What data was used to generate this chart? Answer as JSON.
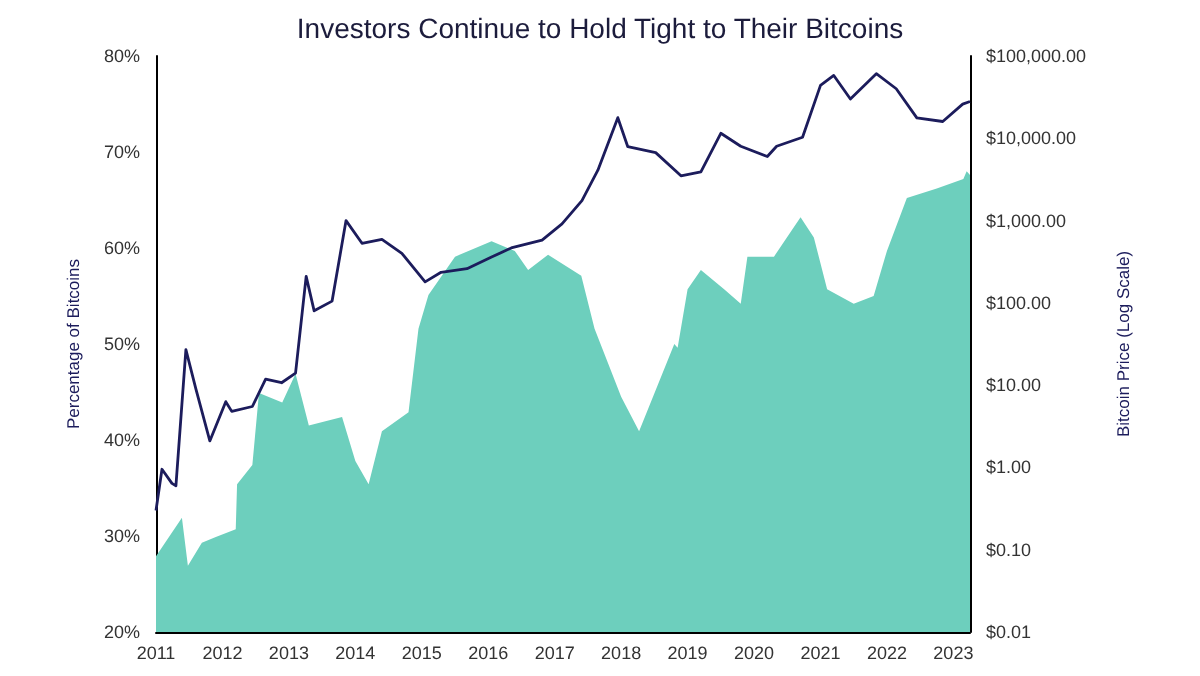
{
  "chart_data": {
    "type": "area",
    "title": "Investors Continue to Hold Tight to Their Bitcoins",
    "ylabel": "Percentage of Bitcoins",
    "y2label": "Bitcoin Price (Log Scale)",
    "xlim": [
      2011,
      2023.25
    ],
    "xticks": [
      2011,
      2012,
      2013,
      2014,
      2015,
      2016,
      2017,
      2018,
      2019,
      2020,
      2021,
      2022,
      2023
    ],
    "ylim": [
      20,
      80
    ],
    "yticks": [
      {
        "value": 20,
        "label": "20%"
      },
      {
        "value": 30,
        "label": "30%"
      },
      {
        "value": 40,
        "label": "40%"
      },
      {
        "value": 50,
        "label": "50%"
      },
      {
        "value": 60,
        "label": "60%"
      },
      {
        "value": 70,
        "label": "70%"
      },
      {
        "value": 80,
        "label": "80%"
      }
    ],
    "y2lim": [
      0.01,
      100000
    ],
    "y2ticks": [
      {
        "value": 0.01,
        "label": "$0.01"
      },
      {
        "value": 0.1,
        "label": "$0.10"
      },
      {
        "value": 1,
        "label": "$1.00"
      },
      {
        "value": 10,
        "label": "$10.00"
      },
      {
        "value": 100,
        "label": "$100.00"
      },
      {
        "value": 1000,
        "label": "$1,000.00"
      },
      {
        "value": 10000,
        "label": "$10,000.00"
      },
      {
        "value": 100000,
        "label": "$100,000.00"
      }
    ],
    "log": "y2",
    "grid": false,
    "series": [
      {
        "color": "#6dcfbd",
        "x": [
          2011.0,
          2011.39,
          2011.48,
          2011.69,
          2011.9,
          2012.2,
          2012.22,
          2012.45,
          2012.55,
          2012.9,
          2013.1,
          2013.3,
          2013.8,
          2014.0,
          2014.2,
          2014.4,
          2014.8,
          2014.95,
          2015.1,
          2015.5,
          2016.05,
          2016.4,
          2016.6,
          2016.9,
          2017.4,
          2017.6,
          2018.0,
          2018.27,
          2018.8,
          2018.85,
          2019.0,
          2019.2,
          2019.55,
          2019.8,
          2019.9,
          2020.3,
          2020.7,
          2020.9,
          2021.1,
          2021.5,
          2021.8,
          2022.0,
          2022.3,
          2022.75,
          2023.15,
          2023.2,
          2023.25
        ],
        "values": [
          27.9,
          31.9,
          26.9,
          29.3,
          29.9,
          30.7,
          35.4,
          37.4,
          44.9,
          43.9,
          46.9,
          41.5,
          42.4,
          37.8,
          35.4,
          40.9,
          42.9,
          51.6,
          55.1,
          59.1,
          60.7,
          59.7,
          57.7,
          59.3,
          57.1,
          51.6,
          44.5,
          40.9,
          50.0,
          49.6,
          55.7,
          57.7,
          55.7,
          54.2,
          59.1,
          59.1,
          63.2,
          61.1,
          55.7,
          54.2,
          55.0,
          59.7,
          65.2,
          66.2,
          67.2,
          68.0,
          67.6
        ]
      },
      {
        "type": "line",
        "axis": "y2",
        "color": "#1c1c5c",
        "x": [
          2011.0,
          2011.09,
          2011.24,
          2011.3,
          2011.45,
          2011.6,
          2011.81,
          2012.05,
          2012.14,
          2012.45,
          2012.65,
          2012.89,
          2013.1,
          2013.26,
          2013.38,
          2013.65,
          2013.86,
          2014.1,
          2014.4,
          2014.7,
          2015.05,
          2015.29,
          2015.68,
          2016.05,
          2016.36,
          2016.81,
          2017.11,
          2017.41,
          2017.65,
          2017.95,
          2018.1,
          2018.52,
          2018.9,
          2019.2,
          2019.5,
          2019.8,
          2020.2,
          2020.34,
          2020.73,
          2021.0,
          2021.2,
          2021.45,
          2021.84,
          2022.14,
          2022.45,
          2022.84,
          2023.14,
          2023.25
        ],
        "values": [
          0.3,
          0.95,
          0.64,
          0.6,
          27,
          9,
          2.1,
          6.3,
          4.8,
          5.5,
          11.8,
          10.7,
          14,
          210,
          80,
          105,
          1000,
          530,
          590,
          400,
          180,
          235,
          260,
          360,
          470,
          580,
          910,
          1750,
          4100,
          17800,
          7900,
          6700,
          3500,
          3900,
          11500,
          8000,
          6000,
          8000,
          10300,
          44000,
          58000,
          30000,
          61000,
          40000,
          17700,
          16000,
          26000,
          28000
        ]
      }
    ]
  }
}
